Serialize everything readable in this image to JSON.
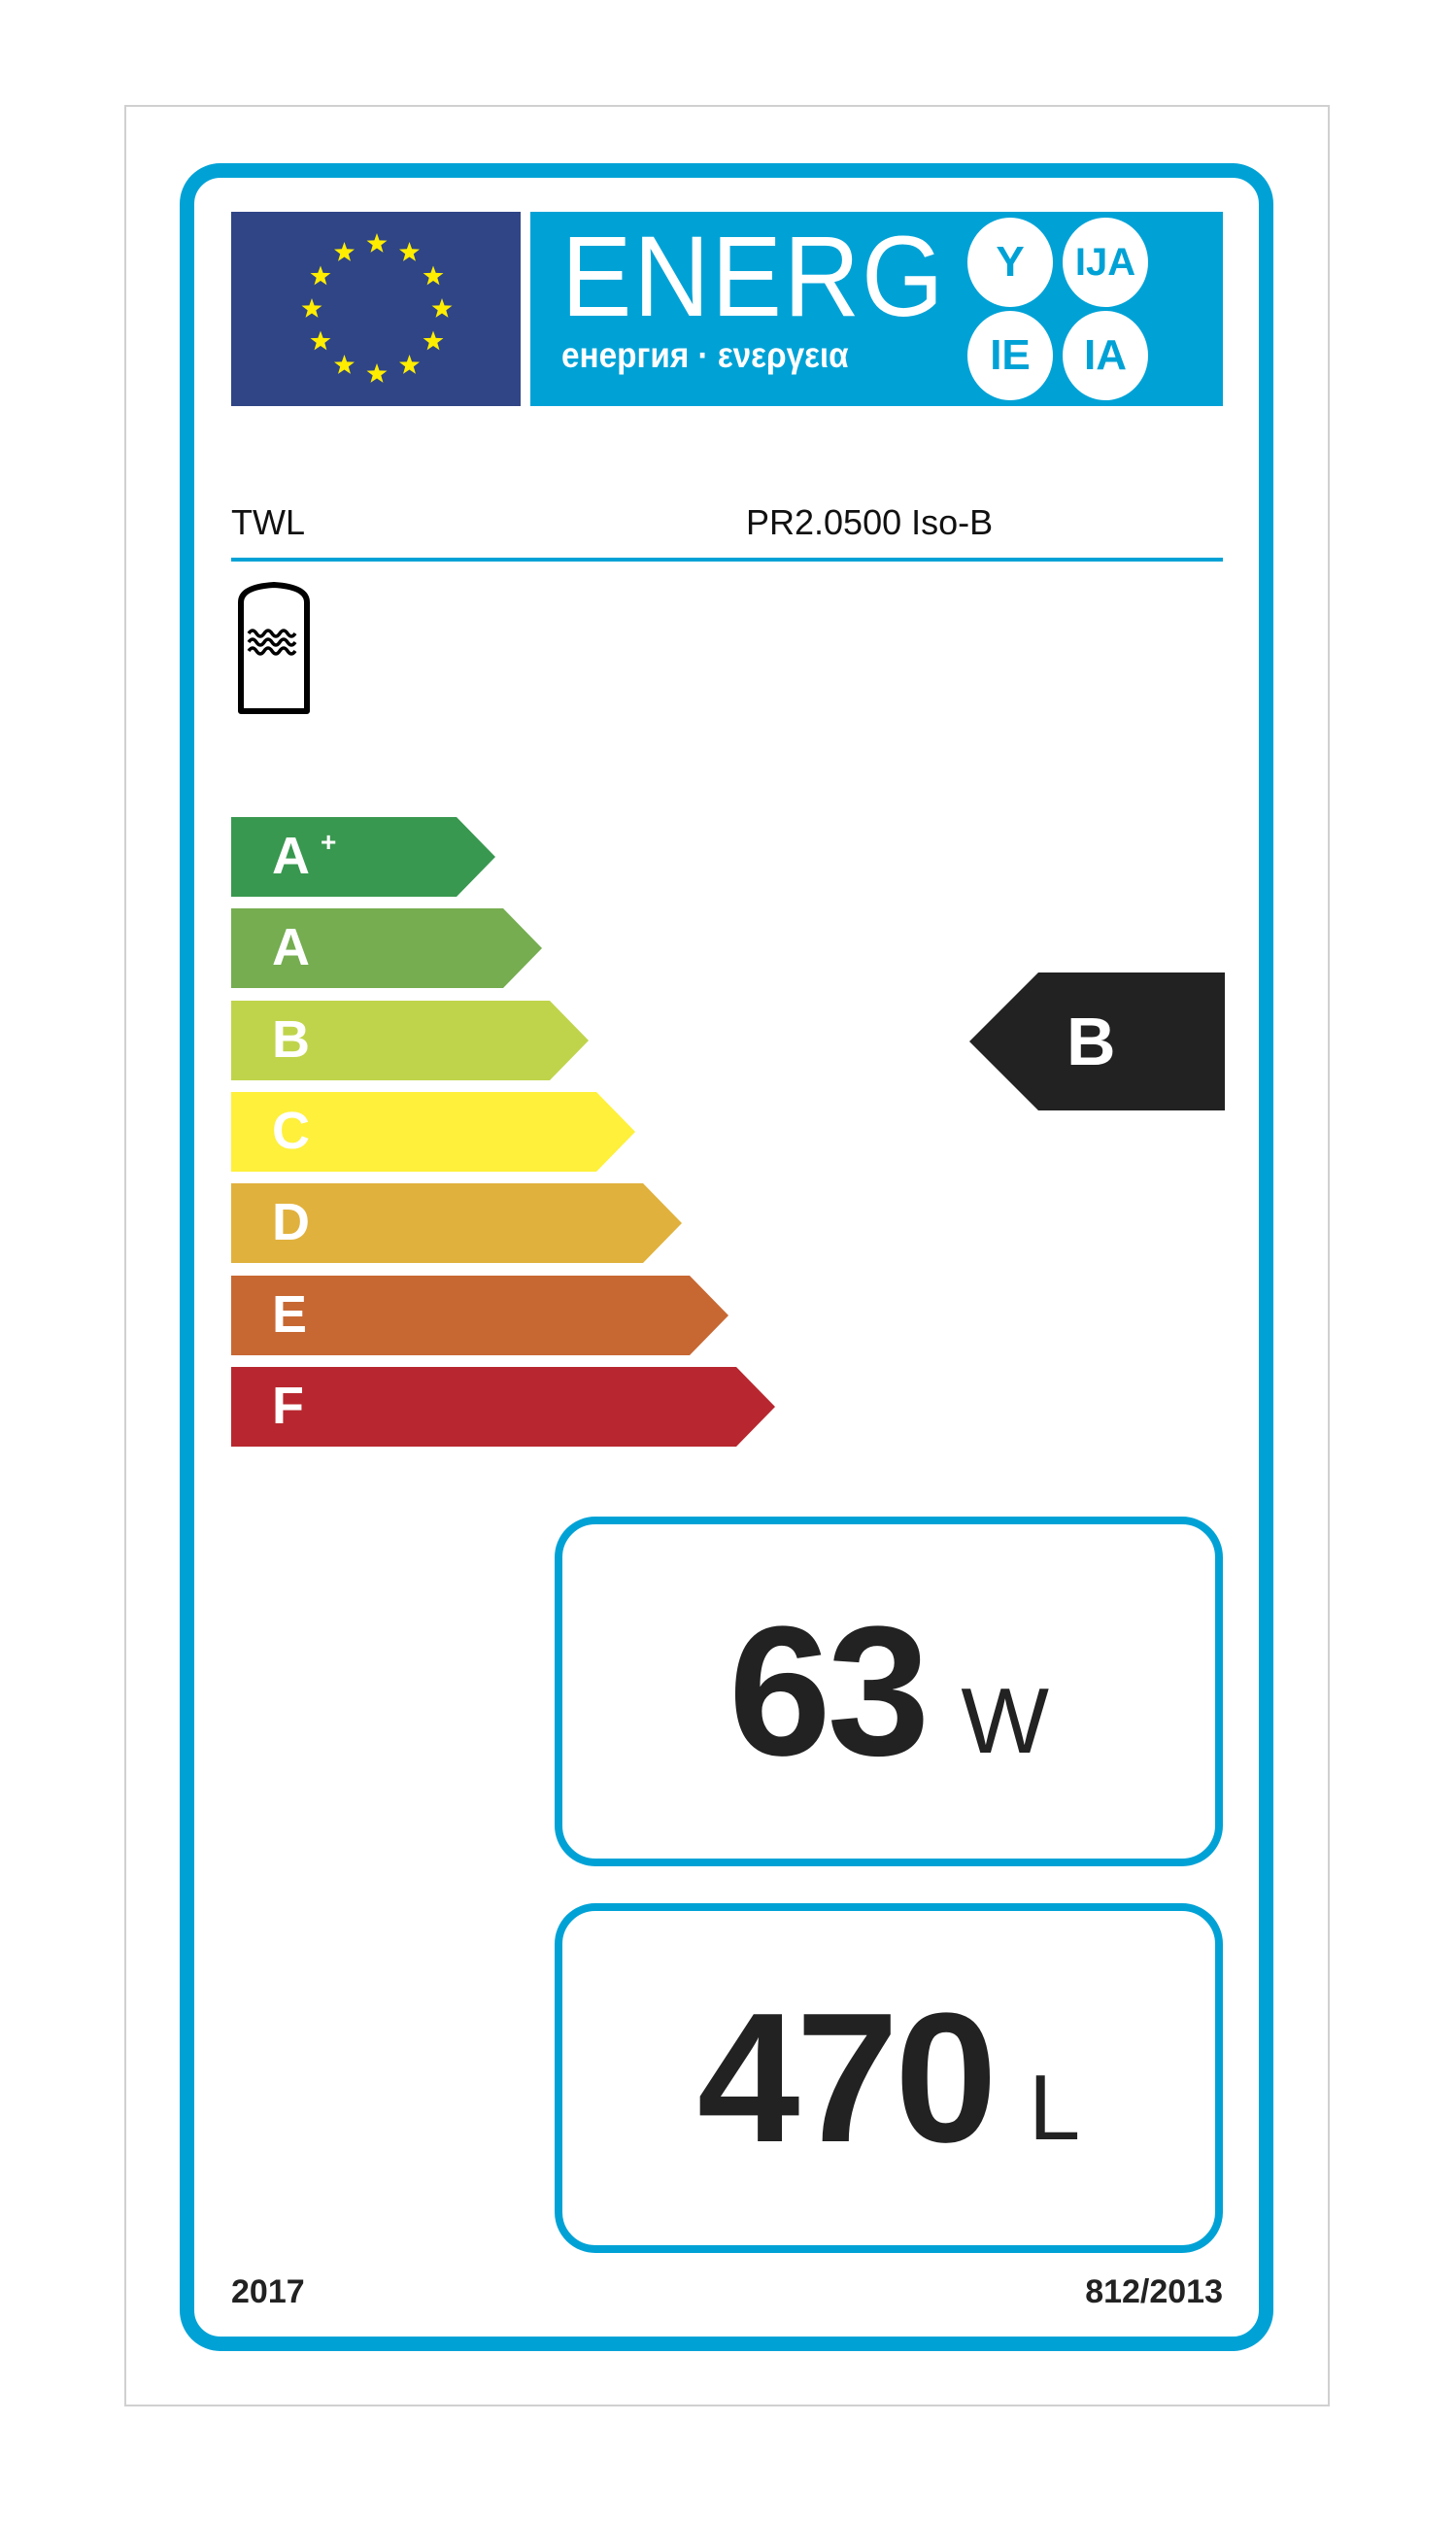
{
  "header": {
    "energy_word": "ENERG",
    "energy_subtitle": "енергия · ενεργεια",
    "suffixes": [
      "Y",
      "IJA",
      "IE",
      "IA"
    ],
    "flag_icon": "eu-flag-icon",
    "colors": {
      "label_blue": "#00a2d6",
      "flag_blue": "#2f4586",
      "star": "#ffed00"
    }
  },
  "product": {
    "supplier": "TWL",
    "model": "PR2.0500 Iso-B",
    "icon": "hot-water-storage-tank-icon"
  },
  "scale": {
    "classes": [
      {
        "letter": "A",
        "sup": "+",
        "color": "#38984f"
      },
      {
        "letter": "A",
        "sup": "",
        "color": "#75ad50"
      },
      {
        "letter": "B",
        "sup": "",
        "color": "#c0d44b"
      },
      {
        "letter": "C",
        "sup": "",
        "color": "#fef03b"
      },
      {
        "letter": "D",
        "sup": "",
        "color": "#e0b13c"
      },
      {
        "letter": "E",
        "sup": "",
        "color": "#c76833"
      },
      {
        "letter": "F",
        "sup": "",
        "color": "#b8272f"
      }
    ],
    "rating": {
      "letter": "B",
      "color": "#222222"
    }
  },
  "values": {
    "standing_loss": {
      "value": "63",
      "unit": "W"
    },
    "volume": {
      "value": "470",
      "unit": "L"
    }
  },
  "footer": {
    "year": "2017",
    "regulation": "812/2013"
  }
}
